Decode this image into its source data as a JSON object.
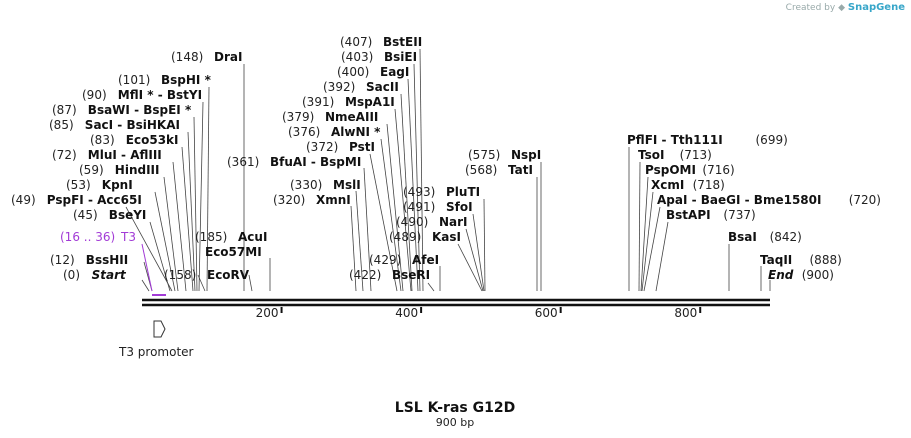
{
  "credit": {
    "prefix": "Created by",
    "brand": "SnapGene"
  },
  "map": {
    "title": "LSL K-ras G12D",
    "length_label": "900 bp",
    "length": 900,
    "ticks": [
      200,
      400,
      600,
      800
    ],
    "sites": [
      {
        "pos": "(0)",
        "name": "Start",
        "italic": true,
        "coord": 0
      },
      {
        "pos": "(12)",
        "name": "BssHII",
        "coord": 12
      },
      {
        "pos": "(45)",
        "name": "BseYI",
        "coord": 45
      },
      {
        "pos": "(49)",
        "name": "PspFI - Acc65I",
        "coord": 49
      },
      {
        "pos": "(53)",
        "name": "KpnI",
        "coord": 53
      },
      {
        "pos": "(59)",
        "name": "HindIII",
        "coord": 59
      },
      {
        "pos": "(72)",
        "name": "MluI - AflIII",
        "coord": 72
      },
      {
        "pos": "(83)",
        "name": "Eco53kI",
        "coord": 83
      },
      {
        "pos": "(85)",
        "name": "SacI - BsiHKAI",
        "coord": 85
      },
      {
        "pos": "(87)",
        "name": "BsaWI - BspEI *",
        "coord": 87
      },
      {
        "pos": "(90)",
        "name": "MflI * - BstYI",
        "coord": 90
      },
      {
        "pos": "(101)",
        "name": "BspHI *",
        "coord": 101
      },
      {
        "pos": "(148)",
        "name": "DraI",
        "coord": 148
      },
      {
        "pos": "(158)",
        "name": "EcoRV",
        "coord": 158
      },
      {
        "pos": "(185)",
        "name": "AcuI",
        "coord": 185
      },
      {
        "pos": "",
        "name": "Eco57MI",
        "coord": 185
      },
      {
        "pos": "(361)",
        "name": "BfuAI - BspMI",
        "coord": 361
      },
      {
        "pos": "(330)",
        "name": "MslI",
        "coord": 330
      },
      {
        "pos": "(320)",
        "name": "XmnI",
        "coord": 320
      },
      {
        "pos": "(372)",
        "name": "PstI",
        "coord": 372
      },
      {
        "pos": "(376)",
        "name": "AlwNI *",
        "coord": 376
      },
      {
        "pos": "(379)",
        "name": "NmeAIII",
        "coord": 379
      },
      {
        "pos": "(391)",
        "name": "MspA1I",
        "coord": 391
      },
      {
        "pos": "(392)",
        "name": "SacII",
        "coord": 392
      },
      {
        "pos": "(400)",
        "name": "EagI",
        "coord": 400
      },
      {
        "pos": "(403)",
        "name": "BsiEI",
        "coord": 403
      },
      {
        "pos": "(407)",
        "name": "BstEII",
        "coord": 407
      },
      {
        "pos": "(422)",
        "name": "BseRI",
        "coord": 422
      },
      {
        "pos": "(429)",
        "name": "AfeI",
        "coord": 429
      },
      {
        "pos": "(489)",
        "name": "KasI",
        "coord": 489
      },
      {
        "pos": "(490)",
        "name": "NarI",
        "coord": 490
      },
      {
        "pos": "(491)",
        "name": "SfoI",
        "coord": 491
      },
      {
        "pos": "(493)",
        "name": "PluTI",
        "coord": 493
      },
      {
        "pos": "(568)",
        "name": "TatI",
        "coord": 568
      },
      {
        "pos": "(575)",
        "name": "NspI",
        "coord": 575
      },
      {
        "pos": "(699)",
        "name": "PflFI - Tth111I",
        "coord": 699
      },
      {
        "pos": "(713)",
        "name": "TsoI",
        "coord": 713
      },
      {
        "pos": "(716)",
        "name": "PspOMI",
        "coord": 716
      },
      {
        "pos": "(718)",
        "name": "XcmI",
        "coord": 718
      },
      {
        "pos": "(720)",
        "name": "ApaI - BaeGI - Bme1580I",
        "coord": 720
      },
      {
        "pos": "(737)",
        "name": "BstAPI",
        "coord": 737
      },
      {
        "pos": "(842)",
        "name": "BsaI",
        "coord": 842
      },
      {
        "pos": "(888)",
        "name": "TaqII",
        "coord": 888
      },
      {
        "pos": "(900)",
        "name": "End",
        "italic": true,
        "coord": 900
      }
    ],
    "primer": {
      "pos": "(16 .. 36)",
      "name": "T3",
      "start": 16,
      "end": 36,
      "color": "#a23bd6"
    },
    "feature": {
      "name": "T3 promoter",
      "start": 16,
      "end": 36
    }
  }
}
